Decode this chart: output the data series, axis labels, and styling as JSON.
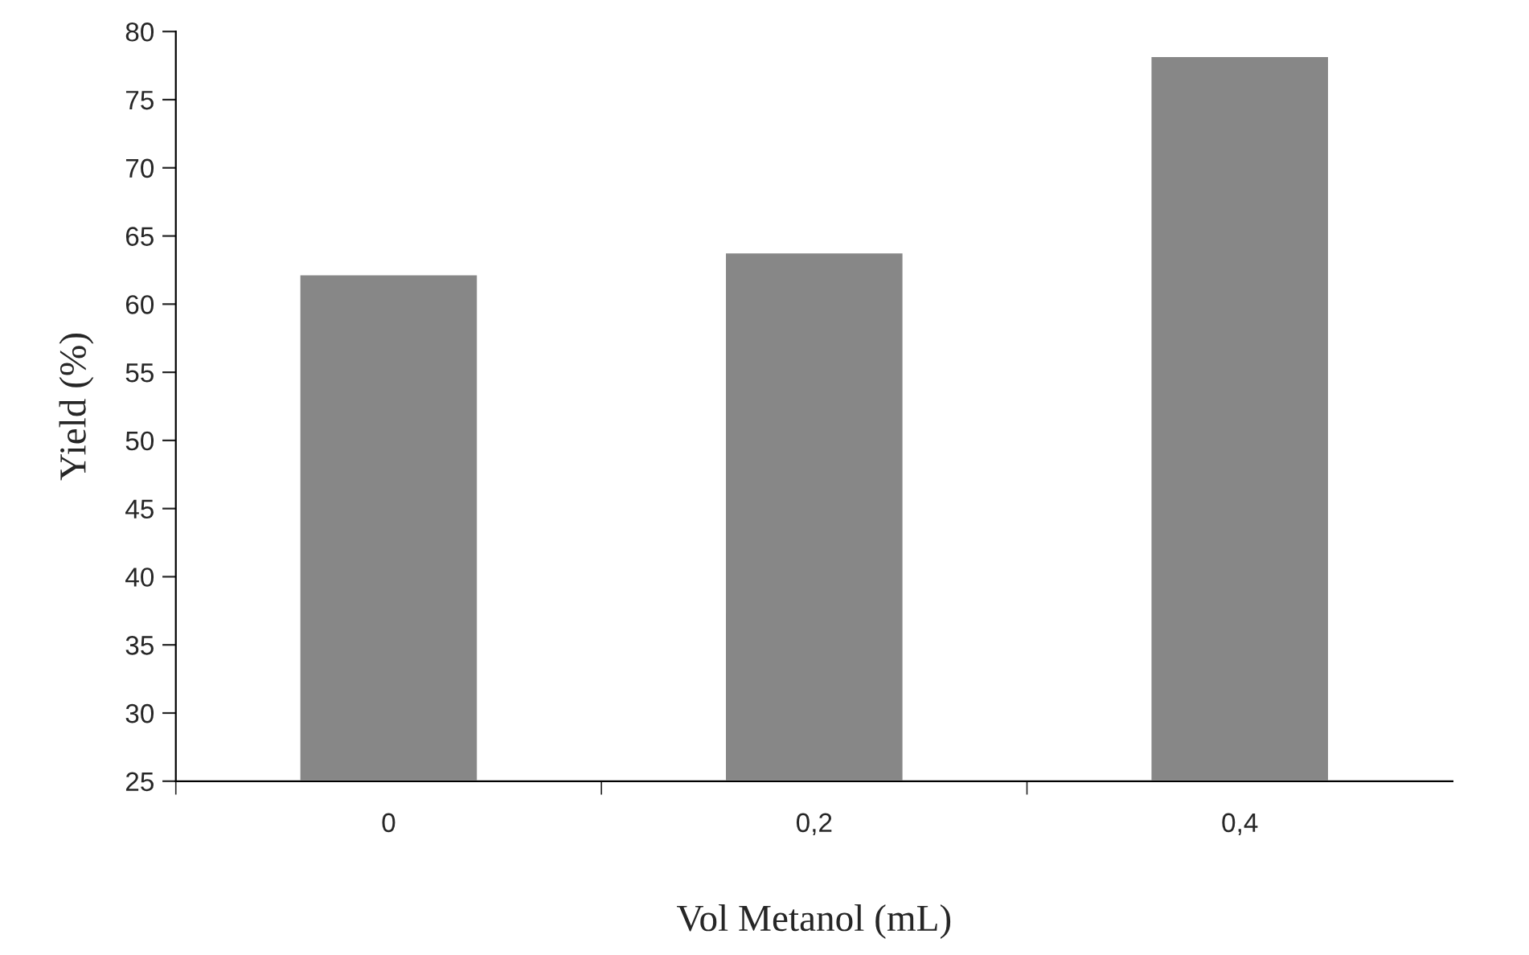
{
  "chart_data": {
    "type": "bar",
    "xlabel": "Vol Metanol (mL)",
    "ylabel": "Yield (%)",
    "categories": [
      "0",
      "0,2",
      "0,4"
    ],
    "values": [
      62.2,
      63.8,
      78.2
    ],
    "color": "#878787",
    "ylim": [
      25,
      80
    ],
    "yticks": [
      25,
      30,
      35,
      40,
      45,
      50,
      55,
      60,
      65,
      70,
      75,
      80
    ],
    "grid": false,
    "legend": false
  }
}
